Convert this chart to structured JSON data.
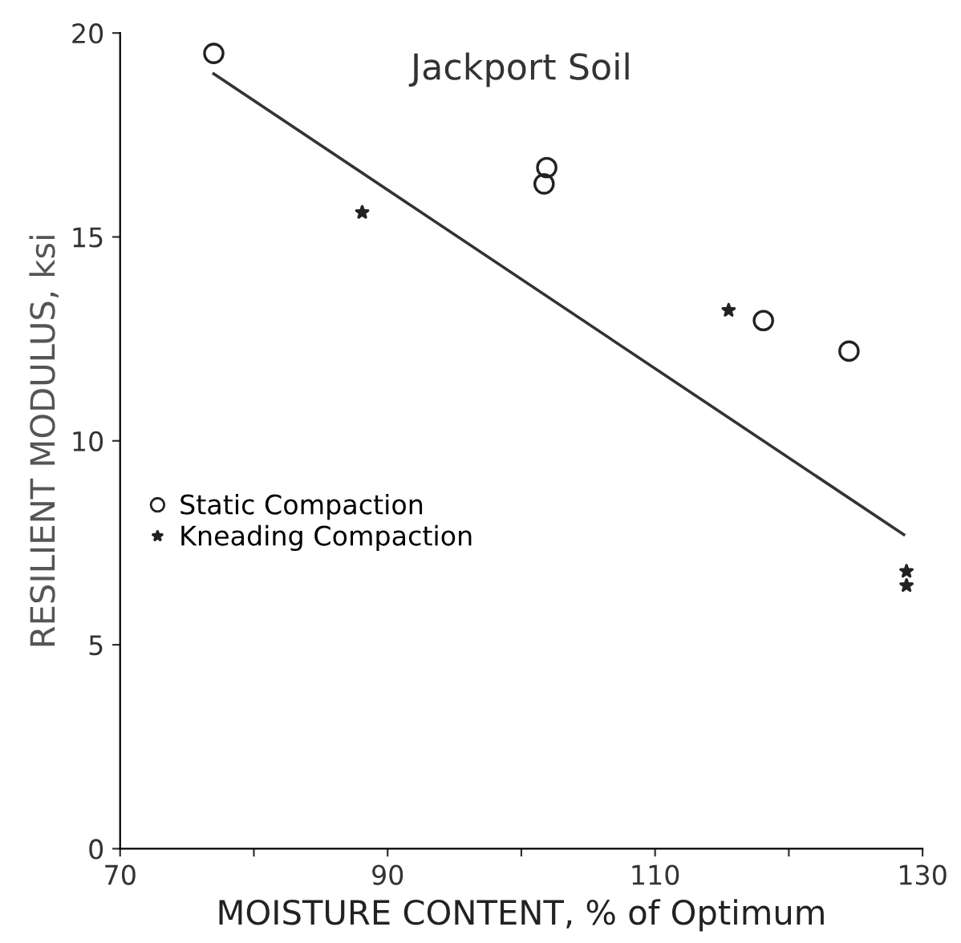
{
  "chart_data": {
    "type": "scatter",
    "title": "Jackport Soil",
    "xlabel": "MOISTURE CONTENT, % of Optimum",
    "ylabel": "RESILIENT MODULUS, ksi",
    "xlim": [
      70,
      130
    ],
    "ylim": [
      0,
      20
    ],
    "xticks": [
      70,
      {
        "value": 80,
        "label": null
      },
      90,
      {
        "value": 100,
        "label": null
      },
      110,
      {
        "value": 120,
        "label": null
      },
      130
    ],
    "yticks": [
      0,
      5,
      10,
      15,
      20
    ],
    "grid": false,
    "legend": "left",
    "series": [
      {
        "name": "Static Compaction",
        "marker": "circle",
        "color": "#222222",
        "x": [
          77.0,
          101.9,
          101.7,
          118.1,
          124.5
        ],
        "values": [
          19.5,
          16.7,
          16.3,
          12.95,
          12.2
        ]
      },
      {
        "name": "Kneading Compaction",
        "marker": "star",
        "color": "#222222",
        "x": [
          88.1,
          115.5,
          128.8,
          128.8
        ],
        "values": [
          15.6,
          13.2,
          6.8,
          6.45
        ]
      },
      {
        "type": "line",
        "color": "#333333",
        "line_style": "solid",
        "marker": "none",
        "x": [
          77.0,
          128.6
        ],
        "values": [
          19.0,
          7.7
        ]
      }
    ]
  }
}
